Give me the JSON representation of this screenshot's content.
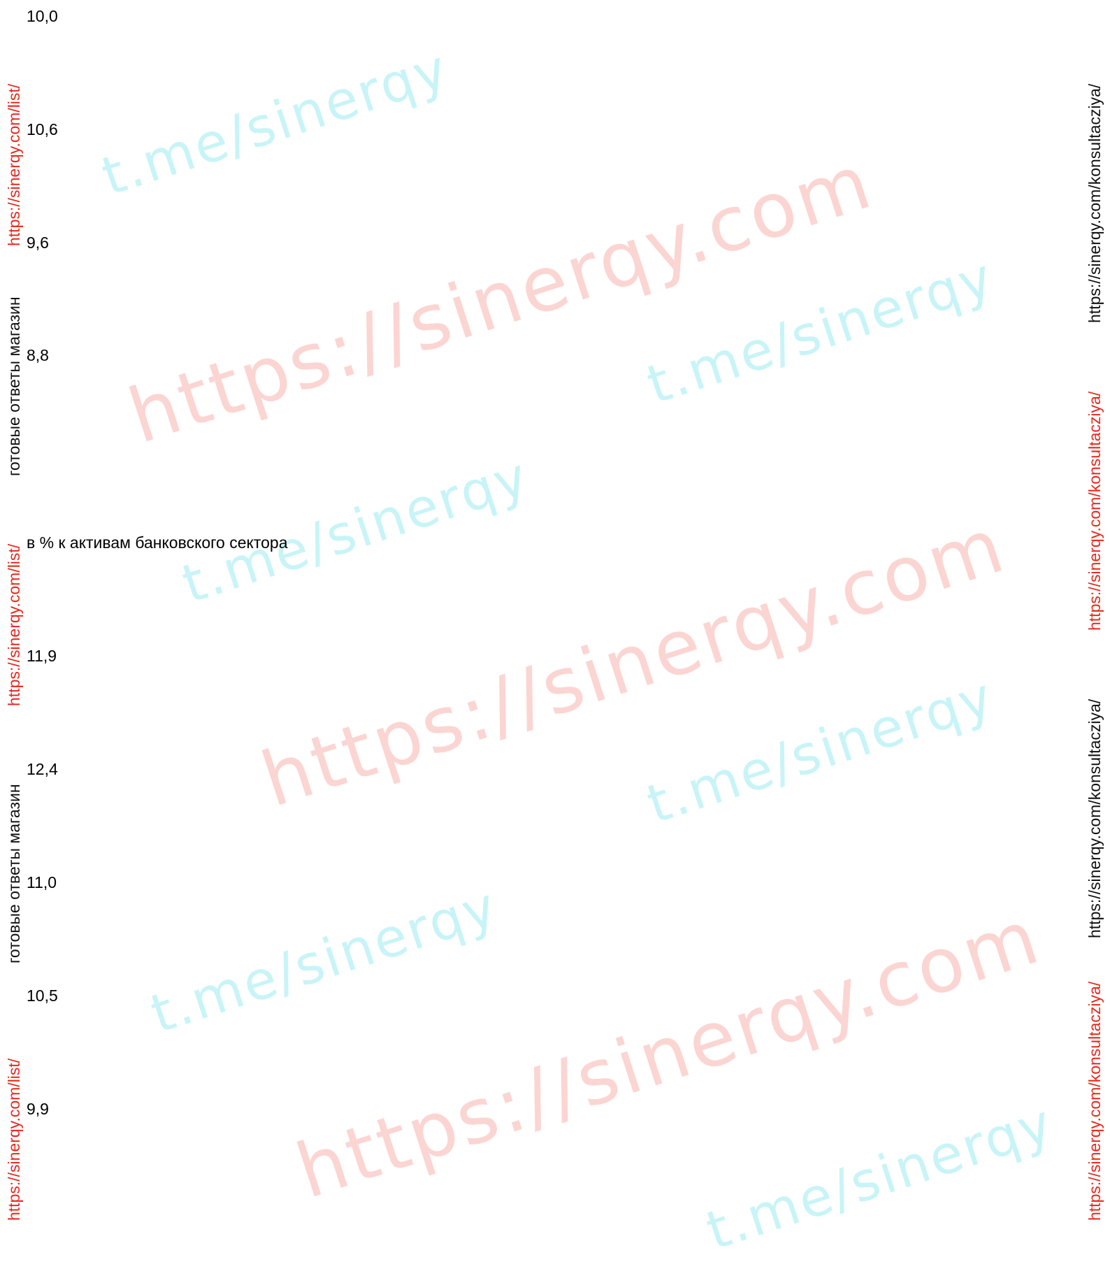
{
  "values_top": [
    "10,0",
    "10,6",
    "9,6",
    "8,8"
  ],
  "section_caption": "в % к активам банковского сектора",
  "values_bottom": [
    "11,9",
    "12,4",
    "11,0",
    "10,5",
    "9,9"
  ],
  "left_margin": {
    "link": "https://sinerqy.com/list/",
    "label": "готовые ответы магазин"
  },
  "right_margin": {
    "link": "https://sinerqy.com/konsultacziya/"
  },
  "watermarks": {
    "site": "https://sinerqy.com",
    "telegram": "t.me/sinerqy"
  },
  "colors": {
    "link_red": "#e8281e",
    "watermark_red": "#fbd5d2",
    "watermark_cyan": "#c8f4f7"
  }
}
